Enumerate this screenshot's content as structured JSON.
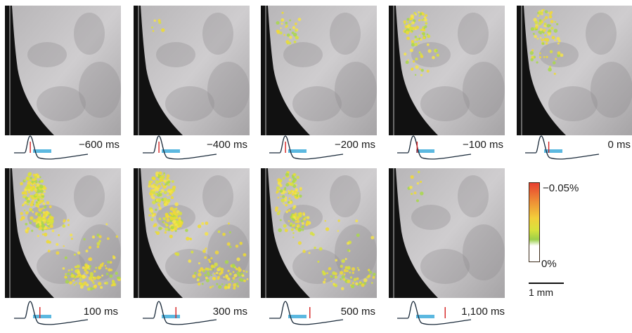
{
  "frames": [
    {
      "label": "−600 ms",
      "signal": 0.0,
      "marker": 0.22
    },
    {
      "label": "−400 ms",
      "signal": 0.05,
      "marker": 0.22
    },
    {
      "label": "−200 ms",
      "signal": 0.25,
      "marker": 0.22
    },
    {
      "label": "−100 ms",
      "signal": 0.55,
      "marker": 0.27
    },
    {
      "label": "0 ms",
      "signal": 0.5,
      "marker": 0.32
    },
    {
      "label": "100 ms",
      "signal": 1.0,
      "marker": 0.35
    },
    {
      "label": "300 ms",
      "signal": 0.85,
      "marker": 0.45
    },
    {
      "label": "500 ms",
      "signal": 0.6,
      "marker": 0.55
    },
    {
      "label": "1,100 ms",
      "signal": 0.08,
      "marker": 0.65
    }
  ],
  "colorbar": {
    "max_label": "−0.05%",
    "min_label": "0%",
    "colors": [
      "#e84030",
      "#ee8a35",
      "#f2cf3a",
      "#d8e23c",
      "#9ccf4a"
    ]
  },
  "scale_bar": {
    "label": "1 mm"
  },
  "colors": {
    "trace": "#1a2a3a",
    "stimulus_bar": "#5bb8e0",
    "marker": "#d42020"
  }
}
